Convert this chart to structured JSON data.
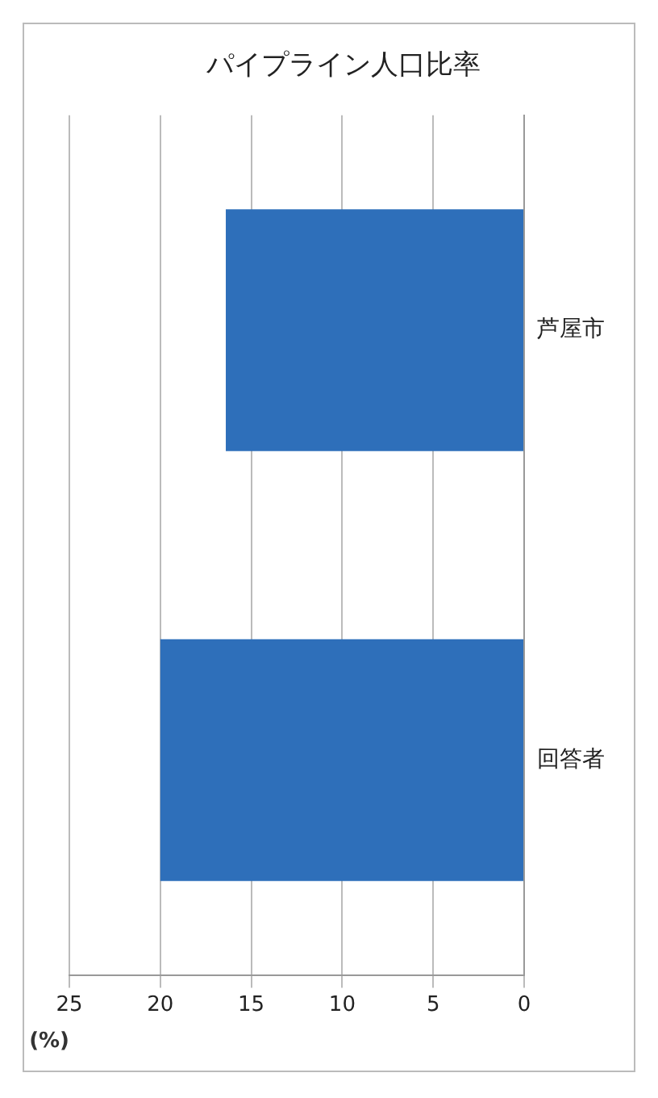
{
  "chart_data": {
    "type": "bar",
    "orientation": "horizontal",
    "title": "パイプライン人口比率",
    "xlabel": "(%)",
    "categories": [
      "芦屋市",
      "回答者"
    ],
    "values": [
      16.4,
      20
    ],
    "color": "#2e6fba",
    "xlim": [
      25,
      0
    ],
    "xticks": [
      25,
      20,
      15,
      10,
      5,
      0
    ],
    "grid": "x",
    "legend": false
  }
}
